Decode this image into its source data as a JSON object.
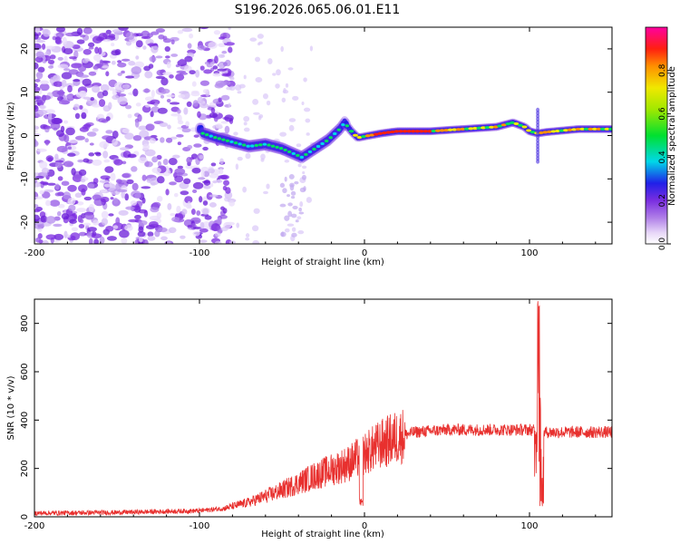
{
  "title": "S196.2026.065.06.01.E11",
  "chart_data": [
    {
      "type": "heatmap",
      "name": "spectrogram",
      "xlabel": "Height of straight line (km)",
      "ylabel": "Frequency (Hz)",
      "xlim": [
        -200,
        150
      ],
      "ylim": [
        -25,
        25
      ],
      "xticks": [
        -200,
        -100,
        0,
        100
      ],
      "yticks": [
        -20,
        -10,
        0,
        10,
        20
      ],
      "colorbar": {
        "label": "Normalized spectral amplitude",
        "range": [
          0.0,
          1.0
        ],
        "ticks": [
          0.0,
          0.2,
          0.4,
          0.6,
          0.8
        ]
      },
      "ridge": {
        "description_points": [
          [
            -98,
            0.5
          ],
          [
            -90,
            -0.5
          ],
          [
            -80,
            -1.5
          ],
          [
            -70,
            -2.5
          ],
          [
            -60,
            -2.0
          ],
          [
            -50,
            -3.0
          ],
          [
            -38,
            -5.0
          ],
          [
            -30,
            -3.0
          ],
          [
            -22,
            -1.0
          ],
          [
            -15,
            1.5
          ],
          [
            -12,
            3.0
          ],
          [
            -8,
            1.0
          ],
          [
            -4,
            -0.5
          ],
          [
            0,
            -0.2
          ],
          [
            10,
            0.5
          ],
          [
            20,
            1.0
          ],
          [
            40,
            1.0
          ],
          [
            60,
            1.5
          ],
          [
            80,
            2.0
          ],
          [
            90,
            3.0
          ],
          [
            97,
            2.0
          ],
          [
            100,
            1.0
          ],
          [
            105,
            0.5
          ],
          [
            110,
            0.8
          ],
          [
            130,
            1.5
          ],
          [
            150,
            1.5
          ]
        ]
      }
    },
    {
      "type": "line",
      "name": "snr",
      "xlabel": "Height of straight line (km)",
      "ylabel": "SNR (10 * v/v)",
      "xlim": [
        -200,
        150
      ],
      "ylim": [
        0,
        900
      ],
      "xticks": [
        -200,
        -100,
        0,
        100
      ],
      "yticks": [
        0,
        200,
        400,
        600,
        800
      ],
      "color": "#e8302e",
      "trend": [
        [
          -200,
          15
        ],
        [
          -150,
          18
        ],
        [
          -100,
          25
        ],
        [
          -85,
          35
        ],
        [
          -70,
          60
        ],
        [
          -50,
          110
        ],
        [
          -30,
          170
        ],
        [
          -10,
          220
        ],
        [
          0,
          260
        ],
        [
          10,
          300
        ],
        [
          20,
          330
        ],
        [
          30,
          350
        ],
        [
          50,
          360
        ],
        [
          80,
          360
        ],
        [
          100,
          360
        ],
        [
          110,
          350
        ],
        [
          150,
          350
        ]
      ],
      "features": [
        {
          "x": 106,
          "y": 880,
          "label": "spike"
        },
        {
          "x": 107.5,
          "y": 55,
          "label": "dip"
        },
        {
          "x": -2,
          "y": 60,
          "label": "dip"
        }
      ]
    }
  ]
}
